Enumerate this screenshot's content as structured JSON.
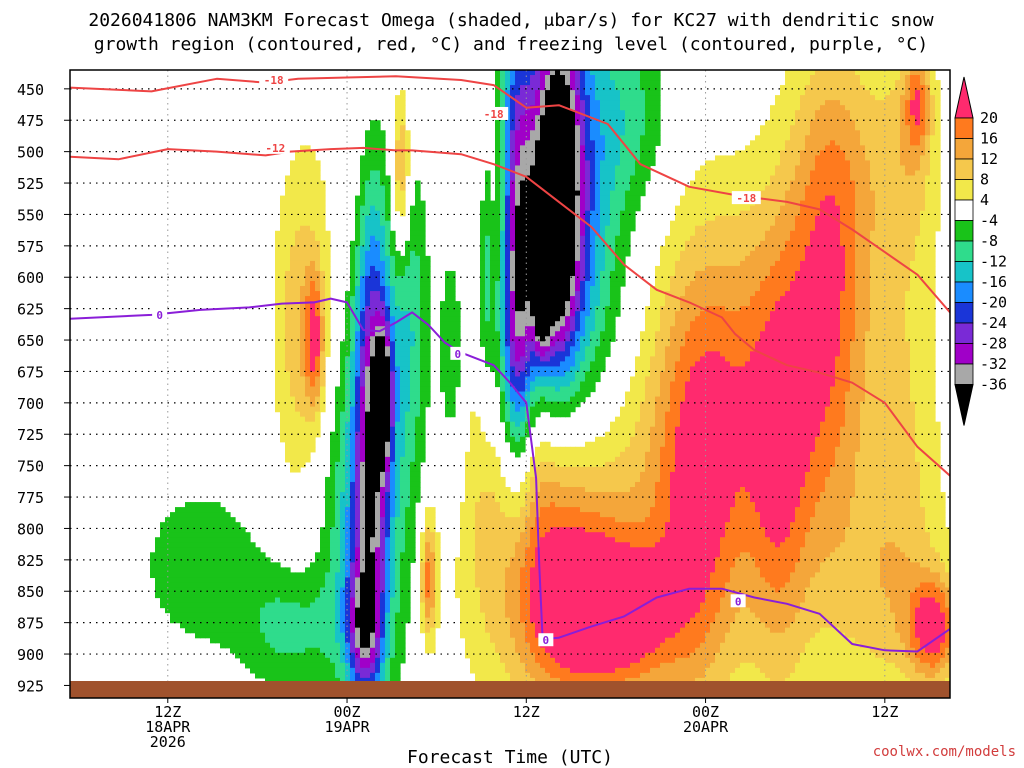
{
  "chart_data": {
    "type": "heatmap",
    "title_line1": "2026041806 NAM3KM Forecast Omega (shaded, μbar/s) for KC27 with dendritic snow",
    "title_line2": "growth region (contoured, red, °C) and freezing level (contoured, purple, °C)",
    "xlabel": "Forecast Time (UTC)",
    "credit": "coolwx.com/models",
    "y_axis": {
      "unit": "hPa",
      "range": [
        435,
        935
      ],
      "ticks": [
        450,
        475,
        500,
        525,
        550,
        575,
        600,
        625,
        650,
        675,
        700,
        725,
        750,
        775,
        800,
        825,
        850,
        875,
        900,
        925
      ]
    },
    "x_axis": {
      "unit": "forecast hour",
      "range": [
        0,
        54
      ],
      "ticks": [
        {
          "hour": 6,
          "lines": [
            "12Z",
            "18APR",
            "2026"
          ]
        },
        {
          "hour": 17,
          "lines": [
            "00Z",
            "19APR"
          ]
        },
        {
          "hour": 28,
          "lines": [
            "12Z"
          ]
        },
        {
          "hour": 39,
          "lines": [
            "00Z",
            "20APR"
          ]
        },
        {
          "hour": 50,
          "lines": [
            "12Z"
          ]
        }
      ]
    },
    "colorbar": {
      "labels": [
        "20",
        "16",
        "12",
        "8",
        "4",
        "-4",
        "-8",
        "-12",
        "-16",
        "-20",
        "-24",
        "-28",
        "-32",
        "-36"
      ],
      "colors": [
        "#ff2a6e",
        "#ff7a1e",
        "#f4a63a",
        "#f5c84c",
        "#f2e84a",
        "#ffffff",
        "#19c319",
        "#2fdc8c",
        "#17c3c8",
        "#1a8cff",
        "#1a35d8",
        "#7a2ad6",
        "#a000c8",
        "#a8a8a8",
        "#000000"
      ]
    },
    "omega_blobs": [
      {
        "hour": 14.0,
        "p": 640,
        "hw": 1.6,
        "hp": 130,
        "value": 10
      },
      {
        "hour": 15.0,
        "p": 650,
        "hw": 0.6,
        "hp": 55,
        "value": 17
      },
      {
        "hour": 17.5,
        "p": 820,
        "hw": 2.0,
        "hp": 120,
        "value": -10
      },
      {
        "hour": 19.0,
        "p": 680,
        "hw": 2.3,
        "hp": 220,
        "value": -14
      },
      {
        "hour": 18.5,
        "p": 720,
        "hw": 1.0,
        "hp": 180,
        "value": -22
      },
      {
        "hour": 18.0,
        "p": 880,
        "hw": 1.0,
        "hp": 50,
        "value": -20
      },
      {
        "hour": 19.2,
        "p": 695,
        "hw": 0.5,
        "hp": 50,
        "value": -30
      },
      {
        "hour": 18.0,
        "p": 530,
        "hw": 3.0,
        "hp": 150,
        "value": 6
      },
      {
        "hour": 20.3,
        "p": 520,
        "hw": 0.6,
        "hp": 70,
        "value": 16
      },
      {
        "hour": 21.0,
        "p": 620,
        "hw": 1.2,
        "hp": 130,
        "value": -8
      },
      {
        "hour": 22.0,
        "p": 840,
        "hw": 0.5,
        "hp": 50,
        "value": 18
      },
      {
        "hour": 23.5,
        "p": 650,
        "hw": 1.0,
        "hp": 120,
        "value": -12
      },
      {
        "hour": 24.0,
        "p": 600,
        "hw": 2.0,
        "hp": 160,
        "value": 6
      },
      {
        "hour": 26.5,
        "p": 570,
        "hw": 1.0,
        "hp": 90,
        "value": 6
      },
      {
        "hour": 25.5,
        "p": 580,
        "hw": 0.6,
        "hp": 110,
        "value": -14
      },
      {
        "hour": 26.0,
        "p": 520,
        "hw": 1.3,
        "hp": 90,
        "value": 8
      },
      {
        "hour": 27.0,
        "p": 540,
        "hw": 1.2,
        "hp": 220,
        "value": -12
      },
      {
        "hour": 27.5,
        "p": 620,
        "hw": 1.0,
        "hp": 140,
        "value": -20
      },
      {
        "hour": 29.0,
        "p": 540,
        "hw": 2.3,
        "hp": 160,
        "value": -22
      },
      {
        "hour": 30.0,
        "p": 530,
        "hw": 1.3,
        "hp": 130,
        "value": -28
      },
      {
        "hour": 29.0,
        "p": 610,
        "hw": 0.5,
        "hp": 45,
        "value": -34
      },
      {
        "hour": 30.0,
        "p": 550,
        "hw": 0.45,
        "hp": 55,
        "value": -34
      },
      {
        "hour": 30.0,
        "p": 555,
        "hw": 0.2,
        "hp": 28,
        "value": -38
      },
      {
        "hour": 31.5,
        "p": 570,
        "hw": 2.5,
        "hp": 220,
        "value": -14
      },
      {
        "hour": 34.5,
        "p": 470,
        "hw": 2.5,
        "hp": 80,
        "value": -8
      },
      {
        "hour": 30.0,
        "p": 810,
        "hw": 5.0,
        "hp": 130,
        "value": 22
      },
      {
        "hour": 33.0,
        "p": 870,
        "hw": 4.0,
        "hp": 60,
        "value": 22
      },
      {
        "hour": 38.5,
        "p": 760,
        "hw": 3.0,
        "hp": 180,
        "value": 21
      },
      {
        "hour": 42.0,
        "p": 680,
        "hw": 3.5,
        "hp": 150,
        "value": 10
      },
      {
        "hour": 43.5,
        "p": 760,
        "hw": 2.0,
        "hp": 180,
        "value": 14
      },
      {
        "hour": 46.5,
        "p": 640,
        "hw": 2.5,
        "hp": 180,
        "value": 18
      },
      {
        "hour": 47.5,
        "p": 510,
        "hw": 3.0,
        "hp": 110,
        "value": 7
      },
      {
        "hour": 51.0,
        "p": 710,
        "hw": 2.5,
        "hp": 160,
        "value": 8
      },
      {
        "hour": 51.5,
        "p": 500,
        "hw": 2.0,
        "hp": 90,
        "value": 8
      },
      {
        "hour": 52.0,
        "p": 460,
        "hw": 0.8,
        "hp": 40,
        "value": 14
      },
      {
        "hour": 50.0,
        "p": 855,
        "hw": 4.0,
        "hp": 90,
        "value": 8
      },
      {
        "hour": 53.0,
        "p": 880,
        "hw": 1.5,
        "hp": 40,
        "value": 20
      },
      {
        "hour": 8.0,
        "p": 830,
        "hw": 4.0,
        "hp": 70,
        "value": -7
      },
      {
        "hour": 13.5,
        "p": 880,
        "hw": 3.0,
        "hp": 50,
        "value": -9
      }
    ],
    "contours": [
      {
        "name": "dgz-upper",
        "label": "-18",
        "color": "#ee4444",
        "points": [
          [
            0,
            449
          ],
          [
            5,
            452
          ],
          [
            9,
            442
          ],
          [
            12,
            445
          ],
          [
            14,
            442
          ],
          [
            17,
            441
          ],
          [
            20,
            440
          ],
          [
            24,
            443
          ],
          [
            26,
            447
          ],
          [
            28,
            465
          ],
          [
            30,
            463
          ],
          [
            33,
            478
          ],
          [
            35,
            510
          ],
          [
            38,
            528
          ],
          [
            41,
            535
          ],
          [
            44,
            540
          ],
          [
            46,
            546
          ],
          [
            48,
            562
          ],
          [
            50,
            580
          ],
          [
            52,
            598
          ],
          [
            54,
            628
          ]
        ],
        "label_at": [
          [
            12.5,
            443
          ],
          [
            26,
            470
          ],
          [
            41.5,
            537
          ]
        ]
      },
      {
        "name": "dgz-lower",
        "label": "-12",
        "color": "#ee4444",
        "points": [
          [
            0,
            504
          ],
          [
            3,
            506
          ],
          [
            6,
            498
          ],
          [
            9,
            500
          ],
          [
            12,
            503
          ],
          [
            13.5,
            500
          ],
          [
            16,
            498
          ],
          [
            18,
            497
          ],
          [
            20,
            499
          ],
          [
            21,
            499
          ],
          [
            24,
            502
          ],
          [
            26,
            510
          ],
          [
            28,
            520
          ],
          [
            30,
            540
          ],
          [
            32,
            560
          ],
          [
            34,
            590
          ],
          [
            36,
            610
          ],
          [
            38,
            620
          ],
          [
            40,
            632
          ],
          [
            40.8,
            645
          ],
          [
            42,
            658
          ],
          [
            44,
            670
          ],
          [
            46,
            676
          ],
          [
            48,
            684
          ],
          [
            50,
            700
          ],
          [
            52,
            735
          ],
          [
            54,
            758
          ]
        ],
        "label_at": [
          [
            12.6,
            497
          ]
        ]
      },
      {
        "name": "freezing-level",
        "label": "0",
        "color": "#8a1ed8",
        "points": [
          [
            0,
            633
          ],
          [
            5,
            630
          ],
          [
            8,
            626
          ],
          [
            11,
            624
          ],
          [
            13,
            621
          ],
          [
            15,
            620
          ],
          [
            16,
            617
          ],
          [
            17,
            620
          ],
          [
            18,
            642
          ],
          [
            19,
            643
          ],
          [
            20,
            636
          ],
          [
            21,
            628
          ],
          [
            22,
            638
          ],
          [
            23,
            652
          ],
          [
            24,
            660
          ],
          [
            26,
            670
          ],
          [
            27,
            684
          ],
          [
            28,
            700
          ],
          [
            28.6,
            760
          ],
          [
            28.8,
            830
          ],
          [
            29,
            888
          ],
          [
            30,
            887
          ],
          [
            32,
            878
          ],
          [
            34,
            870
          ],
          [
            36,
            855
          ],
          [
            38,
            848
          ],
          [
            40,
            848
          ],
          [
            42,
            855
          ],
          [
            44,
            860
          ],
          [
            46,
            868
          ],
          [
            48,
            892
          ],
          [
            50,
            897
          ],
          [
            52,
            898
          ],
          [
            54,
            880
          ]
        ],
        "label_at": [
          [
            5.5,
            630
          ],
          [
            23.8,
            661
          ],
          [
            29.2,
            889
          ],
          [
            41,
            858
          ]
        ]
      }
    ]
  }
}
